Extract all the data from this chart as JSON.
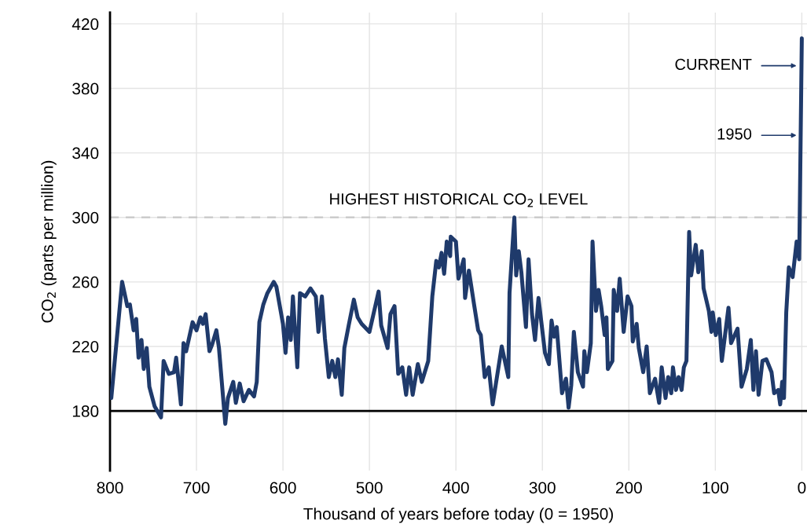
{
  "chart_data": {
    "type": "line",
    "xlabel": "Thousand of years before today (0 = 1950)",
    "ylabel": "CO$_{2}$ (parts per million)",
    "xlim": [
      800,
      -6
    ],
    "xticks": [
      800,
      700,
      600,
      500,
      400,
      300,
      200,
      100,
      0
    ],
    "ylim": [
      143,
      427
    ],
    "yticks": [
      180,
      220,
      260,
      300,
      340,
      380,
      420
    ],
    "grid": true,
    "legend": false,
    "marker": "none",
    "line_style": "solid",
    "ref_lines": [
      {
        "axis": "y",
        "value": 300,
        "label": "HIGHEST HISTORICAL CO$_{2}$ LEVEL",
        "color": "#c8c8c8",
        "line_style": "dashed"
      },
      {
        "axis": "y",
        "value": 180,
        "label": null,
        "color": "#000000",
        "line_style": "solid"
      }
    ],
    "annotations": [
      "CURRENT",
      "1950"
    ],
    "series": [
      {
        "color": "#1f3a6b",
        "x": [
          798.5,
          786,
          780,
          777,
          772.7,
          769.7,
          767,
          763.6,
          761,
          757.6,
          754.5,
          748.5,
          741,
          738,
          732,
          726,
          723.5,
          718,
          715,
          712,
          704.5,
          700,
          695.5,
          692.5,
          689.4,
          685,
          682,
          677,
          674,
          666.7,
          663.6,
          657.5,
          654.5,
          650,
          645.5,
          639.4,
          633.4,
          630.3,
          627.3,
          622.7,
          618,
          610.6,
          607.6,
          600,
          597,
          594,
          591,
          588.5,
          583.4,
          580.3,
          574.3,
          568.2,
          562,
          559,
          555,
          551.5,
          547,
          543,
          539.4,
          536.4,
          532,
          529,
          524,
          518,
          513.6,
          509,
          500,
          489.4,
          486.4,
          479,
          475.7,
          471,
          466.7,
          462,
          457.6,
          454,
          450,
          444,
          439.4,
          432,
          427.3,
          422.7,
          419.7,
          416.6,
          413.6,
          410.6,
          406.6,
          406,
          400,
          397,
          391,
          389.4,
          385,
          379,
          374.3,
          371.2,
          366.7,
          362,
          357.5,
          347,
          339.4,
          338,
          332.4,
          330.3,
          327.3,
          324.3,
          319,
          316,
          312,
          308.5,
          304.5,
          297,
          292.5,
          289.4,
          286.4,
          283.4,
          277.3,
          272.7,
          269.7,
          266.6,
          263.6,
          259,
          253,
          251.5,
          248.5,
          244,
          242,
          238,
          235,
          232,
          228,
          225.9,
          224.3,
          219,
          217.5,
          213.6,
          210.6,
          206,
          201.5,
          197,
          195.5,
          191,
          188.5,
          183.4,
          179.4,
          175.7,
          169.7,
          165,
          162,
          157.6,
          154.5,
          151,
          149,
          145.5,
          142.5,
          139,
          136.4,
          133.4,
          130.3,
          128,
          122.7,
          119.7,
          115.7,
          113.6,
          107.5,
          104.5,
          103,
          99.4,
          95.5,
          92.5,
          84.8,
          81.8,
          74.3,
          69.7,
          63.6,
          59,
          56,
          53,
          50,
          45.5,
          41,
          35,
          32,
          27.3,
          25,
          22.7,
          20.6,
          18,
          15,
          10.6,
          6,
          3,
          0
        ],
        "values": [
          188,
          260,
          245,
          246,
          230,
          237,
          213,
          224,
          206,
          219,
          195,
          183,
          176,
          211,
          203,
          204,
          213,
          184,
          222,
          217,
          235,
          230,
          238,
          234,
          240,
          217,
          221,
          230,
          219,
          172,
          188,
          198,
          185,
          197,
          186,
          193,
          189,
          198,
          235,
          246,
          253,
          260,
          257,
          234,
          216,
          238,
          224,
          251,
          207,
          253,
          251,
          256,
          251,
          229,
          251,
          225,
          201,
          211,
          201,
          212,
          190,
          219,
          233,
          249,
          238,
          234,
          229,
          254,
          233,
          219,
          240,
          245,
          203,
          207,
          190,
          207,
          190,
          209,
          198,
          211,
          251,
          273,
          269,
          278,
          265,
          285,
          276,
          288,
          285,
          262,
          274,
          250,
          267,
          246,
          230,
          227,
          201,
          207,
          184,
          220,
          201,
          253,
          300,
          264,
          279,
          266,
          232,
          274,
          240,
          224,
          250,
          216,
          209,
          236,
          226,
          232,
          191,
          200,
          182,
          196,
          229,
          204,
          195,
          217,
          204,
          222,
          285,
          242,
          255,
          245,
          227,
          238,
          206,
          211,
          255,
          242,
          262,
          229,
          251,
          245,
          223,
          234,
          219,
          204,
          220,
          191,
          200,
          185,
          207,
          188,
          201,
          191,
          207,
          193,
          201,
          193,
          207,
          211,
          291,
          264,
          283,
          266,
          279,
          256,
          242,
          229,
          241,
          227,
          237,
          211,
          244,
          222,
          231,
          195,
          206,
          224,
          193,
          217,
          190,
          211,
          212,
          204,
          191,
          193,
          184,
          198,
          188,
          241,
          269,
          263,
          285,
          274,
          411
        ]
      }
    ]
  }
}
